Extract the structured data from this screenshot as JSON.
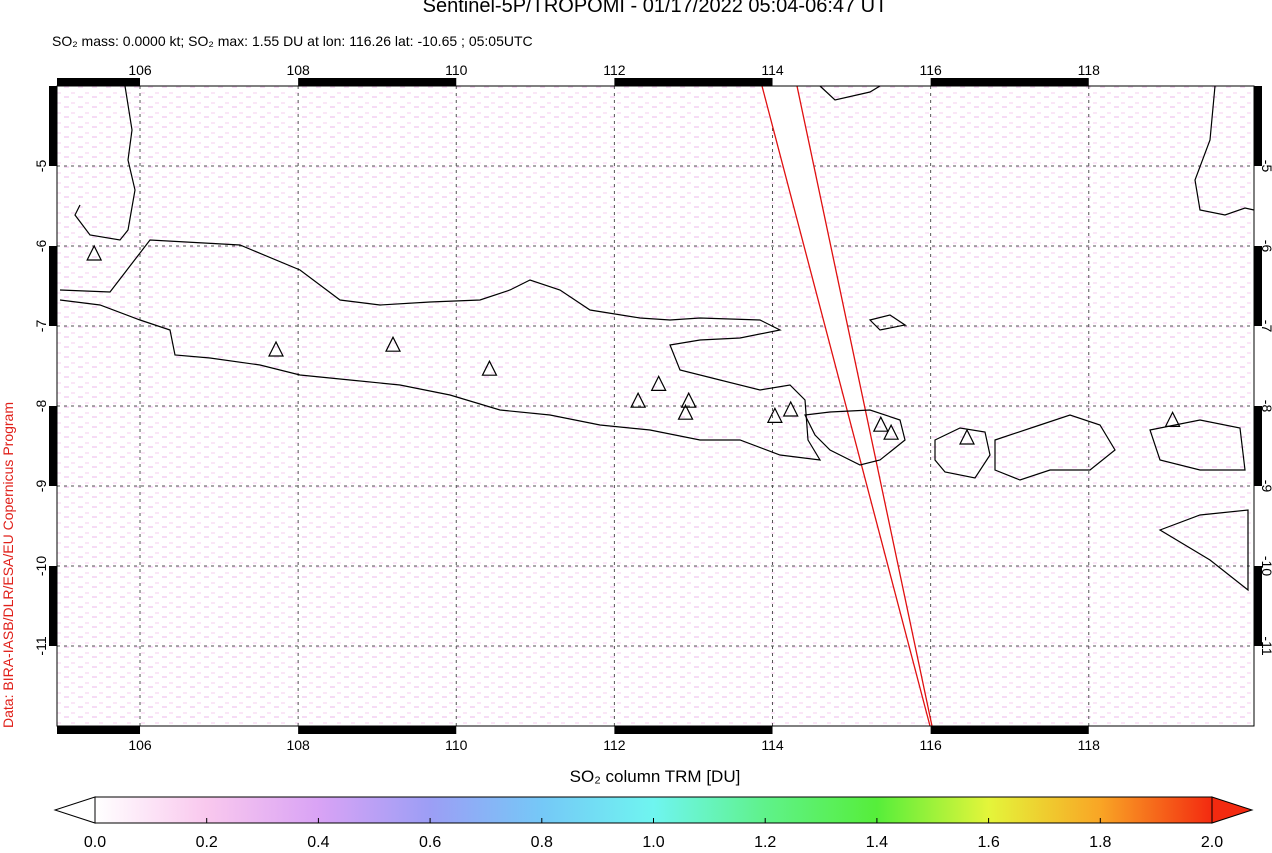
{
  "chart_data": {
    "type": "map",
    "title": "Sentinel-5P/TROPOMI - 01/17/2022 05:04-06:47 UT",
    "subtitle": "SO₂ mass: 0.0000 kt; SO₂ max: 1.55 DU at lon: 116.26 lat: -10.65 ; 05:05UTC",
    "credit": "Data: BIRA-IASB/DLR/ESA/EU Copernicus Program",
    "xlim": [
      104.95,
      120.09
    ],
    "ylim": [
      -12,
      -4
    ],
    "xticks": [
      106,
      108,
      110,
      112,
      114,
      116,
      118
    ],
    "yticks": [
      -5,
      -6,
      -7,
      -8,
      -9,
      -10,
      -11
    ],
    "grid": true,
    "volcanoes": {
      "lon": [
        105.42,
        107.72,
        109.2,
        110.42,
        112.3,
        112.56,
        112.94,
        112.9,
        114.03,
        114.23,
        115.37,
        115.5,
        116.46,
        119.06
      ],
      "lat": [
        -6.1,
        -7.3,
        -7.24,
        -7.54,
        -7.94,
        -7.73,
        -7.94,
        -8.09,
        -8.13,
        -8.05,
        -8.24,
        -8.34,
        -8.4,
        -8.18
      ]
    },
    "colorbar": {
      "label": "SO₂ column TRM [DU]",
      "clim": [
        0,
        2
      ],
      "ticks": [
        {
          "value": 0,
          "label": "0.0"
        },
        0.2,
        0.4,
        0.6,
        0.8,
        {
          "value": 1,
          "label": "1.0"
        },
        1.2,
        1.4,
        1.6,
        1.8,
        {
          "value": 2,
          "label": "2.0"
        }
      ],
      "colors": [
        "#ffffff",
        "#f9c8ee",
        "#d9a3f5",
        "#9c9ef5",
        "#75c8f7",
        "#6ff5f0",
        "#5ff28a",
        "#56ee3a",
        "#e4f53a",
        "#f9a525",
        "#f32a10"
      ]
    }
  }
}
